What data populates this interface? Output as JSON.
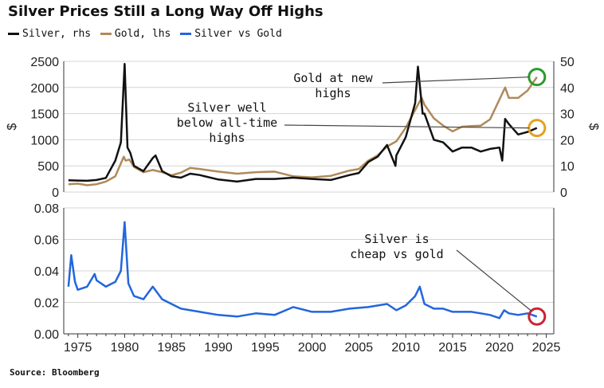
{
  "chart_data": {
    "title": "Silver Prices Still a Long Way Off Highs",
    "source": "Source: Bloomberg",
    "legend": [
      {
        "label": "Silver, rhs",
        "color": "#111111"
      },
      {
        "label": "Gold, lhs",
        "color": "#b08a5a"
      },
      {
        "label": "Silver vs Gold",
        "color": "#2266dd"
      }
    ],
    "colors": {
      "silver": "#111111",
      "gold": "#b08a5a",
      "ratio": "#2266dd",
      "green": "#2a9a2a",
      "orange": "#e6a020",
      "red": "#cc2233"
    },
    "top_panel": {
      "type": "line",
      "left_axis": {
        "label": "$",
        "ticks": [
          "0",
          "500",
          "1000",
          "1500",
          "2000",
          "2500"
        ],
        "range": [
          0,
          2500
        ]
      },
      "right_axis": {
        "label": "$",
        "ticks": [
          "0",
          "10",
          "20",
          "30",
          "40",
          "50"
        ],
        "range": [
          0,
          50
        ]
      },
      "gold": {
        "name": "Gold, lhs",
        "x": [
          1974,
          1975,
          1976,
          1977,
          1978,
          1979,
          1979.9,
          1980.1,
          1980.5,
          1981,
          1982,
          1983,
          1984,
          1985,
          1986,
          1987,
          1988,
          1990,
          1992,
          1994,
          1996,
          1998,
          2000,
          2002,
          2004,
          2005,
          2006,
          2007,
          2008,
          2009,
          2010,
          2011,
          2011.7,
          2012,
          2013,
          2014,
          2015,
          2016,
          2017,
          2018,
          2019,
          2020,
          2020.6,
          2021,
          2022,
          2023,
          2024
        ],
        "y": [
          150,
          160,
          130,
          150,
          200,
          300,
          675,
          600,
          620,
          480,
          380,
          420,
          380,
          320,
          370,
          460,
          440,
          390,
          350,
          380,
          390,
          300,
          280,
          310,
          410,
          440,
          600,
          700,
          870,
          970,
          1230,
          1570,
          1800,
          1670,
          1410,
          1270,
          1160,
          1250,
          1260,
          1270,
          1390,
          1770,
          2000,
          1800,
          1800,
          1940,
          2200
        ]
      },
      "silver": {
        "name": "Silver, rhs",
        "x": [
          1974,
          1975,
          1976,
          1977,
          1978,
          1979,
          1979.6,
          1980.0,
          1980.3,
          1980.6,
          1981,
          1982,
          1983,
          1983.3,
          1984,
          1985,
          1986,
          1987,
          1988,
          1990,
          1992,
          1994,
          1996,
          1998,
          2000,
          2002,
          2004,
          2005,
          2006,
          2007,
          2008,
          2008.9,
          2009,
          2010,
          2011,
          2011.3,
          2011.8,
          2012,
          2013,
          2014,
          2015,
          2016,
          2017,
          2018,
          2019,
          2020,
          2020.3,
          2020.6,
          2021,
          2022,
          2023,
          2024
        ],
        "y": [
          4.5,
          4.4,
          4.3,
          4.6,
          5.4,
          12,
          19,
          49,
          17,
          15,
          10,
          8,
          13,
          14,
          8,
          6,
          5.5,
          7,
          6.5,
          4.8,
          4,
          5,
          5,
          5.5,
          5,
          4.6,
          6.5,
          7.3,
          11.5,
          13.5,
          18,
          10,
          14,
          21,
          34,
          48,
          30,
          30,
          20,
          19,
          15.5,
          17,
          17,
          15.5,
          16.5,
          17,
          12,
          28,
          26,
          22,
          23,
          24.5
        ]
      },
      "annotations": [
        {
          "text_lines": [
            "Gold at new",
            "highs"
          ],
          "target": "gold"
        },
        {
          "text_lines": [
            "Silver well",
            "below all-time",
            "highs"
          ],
          "target": "silver"
        }
      ]
    },
    "bottom_panel": {
      "type": "line",
      "left_axis": {
        "ticks": [
          "0.00",
          "0.02",
          "0.04",
          "0.06",
          "0.08"
        ],
        "range": [
          0,
          0.08
        ]
      },
      "ratio": {
        "name": "Silver vs Gold",
        "x": [
          1974,
          1974.3,
          1974.7,
          1975,
          1976,
          1976.8,
          1977,
          1978,
          1979,
          1979.6,
          1980.0,
          1980.4,
          1981,
          1982,
          1983,
          1984,
          1985,
          1986,
          1987,
          1988,
          1990,
          1992,
          1994,
          1996,
          1998,
          2000,
          2002,
          2004,
          2006,
          2008,
          2009,
          2010,
          2011,
          2011.5,
          2012,
          2013,
          2014,
          2015,
          2016,
          2017,
          2018,
          2019,
          2020,
          2020.5,
          2021,
          2022,
          2023,
          2024
        ],
        "y": [
          0.03,
          0.05,
          0.033,
          0.028,
          0.03,
          0.038,
          0.034,
          0.03,
          0.033,
          0.04,
          0.071,
          0.032,
          0.024,
          0.022,
          0.03,
          0.022,
          0.019,
          0.016,
          0.015,
          0.014,
          0.012,
          0.011,
          0.013,
          0.012,
          0.017,
          0.014,
          0.014,
          0.016,
          0.017,
          0.019,
          0.015,
          0.018,
          0.024,
          0.03,
          0.019,
          0.016,
          0.016,
          0.014,
          0.014,
          0.014,
          0.013,
          0.012,
          0.01,
          0.015,
          0.013,
          0.012,
          0.013,
          0.011
        ]
      },
      "annotations": [
        {
          "text_lines": [
            "Silver is",
            "cheap vs gold"
          ],
          "target": "ratio"
        }
      ]
    },
    "x_axis": {
      "ticks": [
        "1975",
        "1980",
        "1985",
        "1990",
        "1995",
        "2000",
        "2005",
        "2010",
        "2015",
        "2020",
        "2025"
      ],
      "range": [
        1973.5,
        2025.8
      ]
    }
  }
}
